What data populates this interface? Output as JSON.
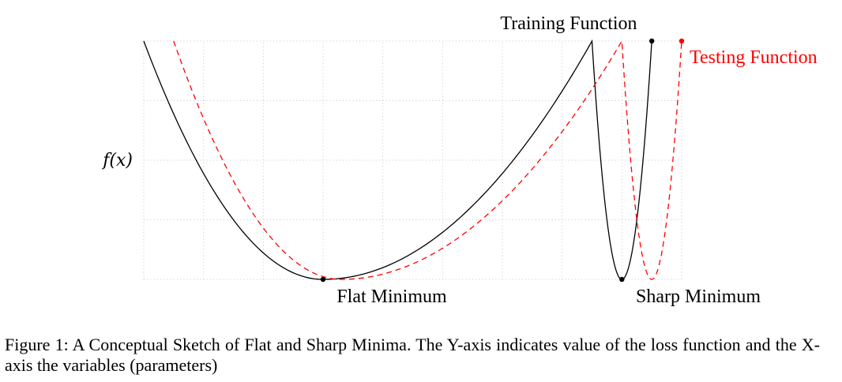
{
  "chart_data": {
    "type": "line",
    "title": "",
    "xlabel": "",
    "ylabel": "f(x)",
    "grid": true,
    "xlim": [
      0,
      9
    ],
    "ylim": [
      0,
      4
    ],
    "series": [
      {
        "name": "Training Function",
        "color": "#000000",
        "style": "solid",
        "points": [
          [
            0,
            4
          ],
          [
            3,
            0
          ],
          [
            7.5,
            4
          ],
          [
            8,
            0
          ],
          [
            8.5,
            4
          ]
        ]
      },
      {
        "name": "Testing Function",
        "color": "#ff0000",
        "style": "dashed",
        "points": [
          [
            0.5,
            4
          ],
          [
            3.3,
            0
          ],
          [
            8,
            4
          ],
          [
            8.5,
            0
          ],
          [
            9,
            4
          ]
        ]
      }
    ],
    "markers": [
      {
        "label": "Flat Minimum",
        "x": 3,
        "y": 0,
        "color": "#000000"
      },
      {
        "label": "Sharp Minimum",
        "x": 8,
        "y": 0,
        "color": "#000000"
      }
    ],
    "endpoint_markers": [
      {
        "series": 0,
        "x": 8.5,
        "y": 4,
        "color": "#000000"
      },
      {
        "series": 1,
        "x": 9,
        "y": 4,
        "color": "#ff0000"
      }
    ]
  },
  "figure": {
    "caption": "Figure 1: A Conceptual Sketch of Flat and Sharp Minima. The Y-axis indicates value of the loss function and the X-axis the variables (parameters)"
  }
}
